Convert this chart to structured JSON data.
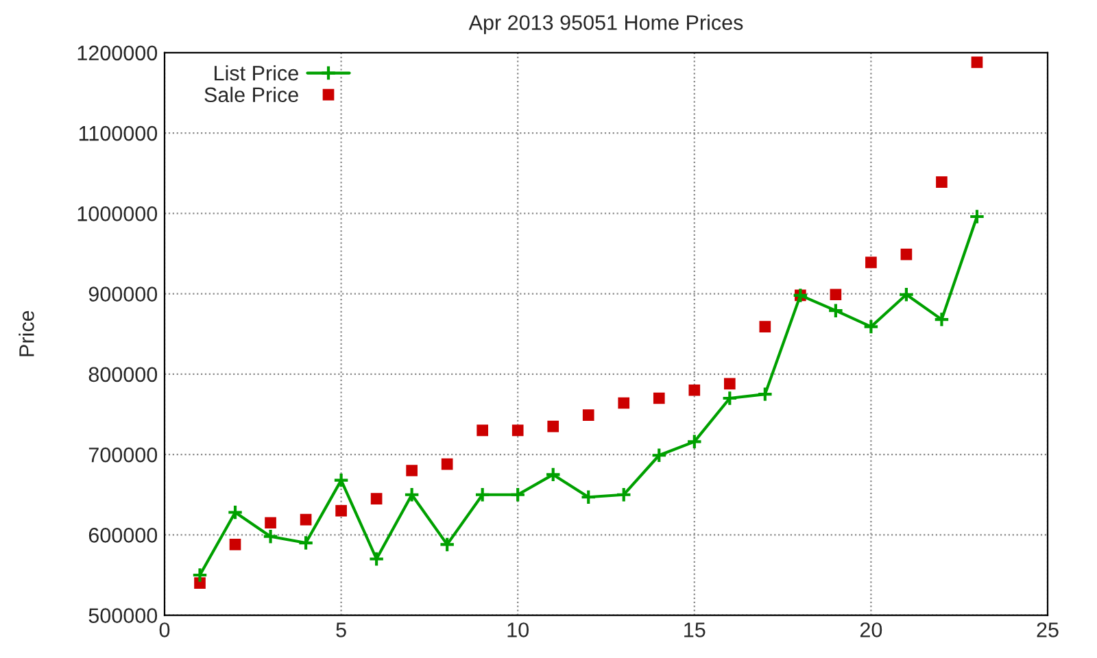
{
  "chart_data": {
    "type": "line",
    "title": "Apr 2013 95051 Home Prices",
    "ylabel": "Price",
    "x": [
      1,
      2,
      3,
      4,
      5,
      6,
      7,
      8,
      9,
      10,
      11,
      12,
      13,
      14,
      15,
      16,
      17,
      18,
      19,
      20,
      21,
      22,
      23
    ],
    "series": [
      {
        "name": "List Price",
        "color": "#00a000",
        "marker": "cross",
        "line_style": "solid",
        "values": [
          550000,
          628000,
          598000,
          590000,
          668000,
          570000,
          650000,
          588000,
          650000,
          650000,
          675000,
          647000,
          650000,
          699000,
          716000,
          770000,
          775000,
          898000,
          879000,
          859000,
          899000,
          868000,
          996000
        ]
      },
      {
        "name": "Sale Price",
        "type": "scatter",
        "color": "#cc0000",
        "marker": "square",
        "values": [
          540000,
          588000,
          615000,
          619000,
          630000,
          645000,
          680000,
          688000,
          730000,
          730000,
          735000,
          749000,
          764000,
          770000,
          780000,
          788000,
          859000,
          898000,
          899000,
          939000,
          949000,
          1039000,
          1188000
        ]
      }
    ],
    "xlim": [
      0,
      25
    ],
    "xticks": [
      0,
      5,
      10,
      15,
      20,
      25
    ],
    "ylim": [
      500000,
      1200000
    ],
    "yticks": [
      500000,
      600000,
      700000,
      800000,
      900000,
      1000000,
      1100000,
      1200000
    ],
    "grid": true,
    "legend": "top left"
  }
}
